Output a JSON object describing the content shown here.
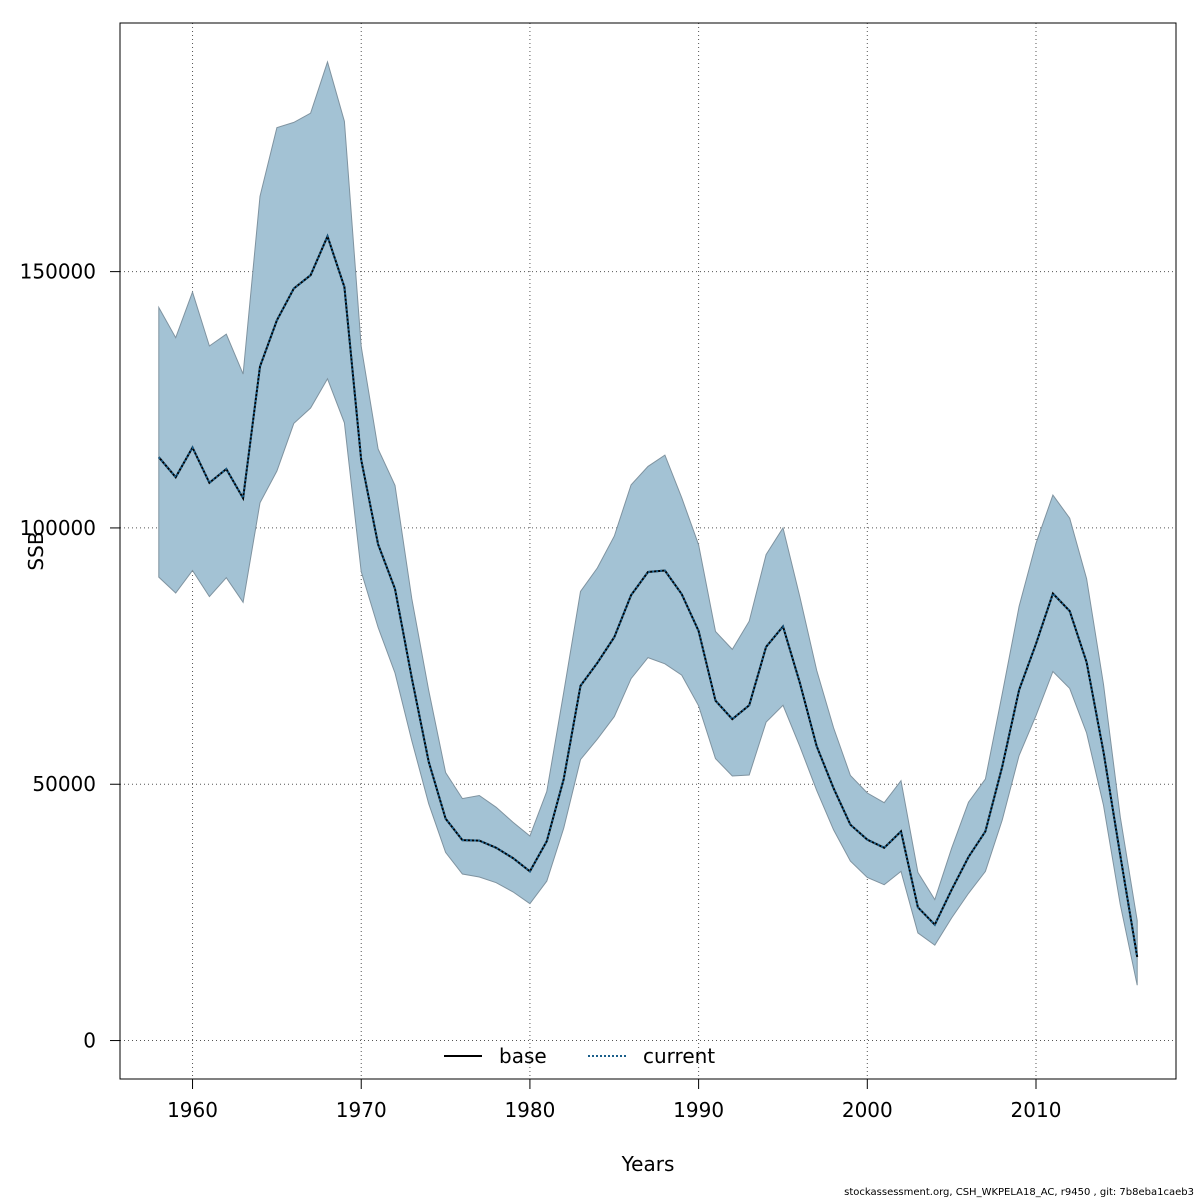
{
  "chart_data": {
    "type": "area",
    "xlabel": "Years",
    "ylabel": "SSB",
    "xlim": [
      1955.7,
      2018.3
    ],
    "ylim": [
      -7500,
      198500
    ],
    "x_ticks": [
      1960,
      1970,
      1980,
      1990,
      2000,
      2010
    ],
    "y_ticks": [
      0,
      50000,
      100000,
      150000
    ],
    "grid": true,
    "legend_position": "bottom-center",
    "colors": {
      "band": "#a3c2d4",
      "band_edge": "#7f93a0",
      "base": "#000000",
      "current": "#1a5e8a"
    },
    "x": [
      1958,
      1959,
      1960,
      1961,
      1962,
      1963,
      1964,
      1965,
      1966,
      1967,
      1968,
      1969,
      1970,
      1971,
      1972,
      1973,
      1974,
      1975,
      1976,
      1977,
      1978,
      1979,
      1980,
      1981,
      1982,
      1983,
      1984,
      1985,
      1986,
      1987,
      1988,
      1989,
      1990,
      1991,
      1992,
      1993,
      1994,
      1995,
      1996,
      1997,
      1998,
      1999,
      2000,
      2001,
      2002,
      2003,
      2004,
      2005,
      2006,
      2007,
      2008,
      2009,
      2010,
      2011,
      2012,
      2013,
      2014,
      2015,
      2016
    ],
    "series": [
      {
        "name": "base",
        "style": "solid",
        "values": [
          113800,
          109900,
          115700,
          108800,
          111500,
          105800,
          131500,
          140500,
          146700,
          149300,
          156900,
          147000,
          113300,
          96800,
          88100,
          70700,
          54400,
          43300,
          39100,
          39000,
          37600,
          35600,
          33000,
          38900,
          51000,
          69200,
          73700,
          78700,
          86900,
          91400,
          91700,
          87100,
          79900,
          66300,
          62700,
          65400,
          76800,
          80800,
          69800,
          57400,
          49200,
          42100,
          39200,
          37600,
          40800,
          26000,
          22600,
          29400,
          35800,
          40800,
          53400,
          68400,
          77400,
          87200,
          83800,
          73800,
          56300,
          36100,
          16300
        ]
      },
      {
        "name": "current",
        "style": "dotted",
        "values": [
          113800,
          109900,
          115700,
          108800,
          111500,
          105800,
          131500,
          140500,
          146700,
          149300,
          156900,
          147000,
          113300,
          96800,
          88100,
          70700,
          54400,
          43300,
          39100,
          39000,
          37600,
          35600,
          33000,
          38900,
          51000,
          69200,
          73700,
          78700,
          86900,
          91400,
          91700,
          87100,
          79900,
          66300,
          62700,
          65400,
          76800,
          80800,
          69800,
          57400,
          49200,
          42100,
          39200,
          37600,
          40800,
          26000,
          22600,
          29400,
          35800,
          40800,
          53400,
          68400,
          77400,
          87200,
          83800,
          73800,
          56300,
          36100,
          16300
        ]
      }
    ],
    "ci_upper": [
      143000,
      137100,
      146000,
      135500,
      137800,
      130000,
      164700,
      178100,
      179100,
      180900,
      190900,
      179300,
      135400,
      115400,
      108300,
      86200,
      68300,
      52300,
      47200,
      47800,
      45500,
      42600,
      39900,
      48600,
      67900,
      87600,
      92200,
      98400,
      108400,
      112000,
      114200,
      105900,
      96700,
      79800,
      76300,
      81800,
      94800,
      100000,
      86600,
      72200,
      61000,
      51700,
      48300,
      46400,
      50700,
      32800,
      27500,
      37500,
      46500,
      51000,
      67600,
      84700,
      97000,
      106400,
      101900,
      90100,
      69500,
      43600,
      23400
    ],
    "ci_lower": [
      90400,
      87300,
      91700,
      86600,
      90300,
      85500,
      104900,
      111100,
      120400,
      123400,
      129100,
      120500,
      91500,
      80600,
      71700,
      58500,
      46200,
      36700,
      32500,
      31900,
      30800,
      29000,
      26700,
      31100,
      41400,
      54800,
      58800,
      63200,
      70600,
      74700,
      73500,
      71300,
      65300,
      55000,
      51600,
      51800,
      62100,
      65400,
      57400,
      48800,
      41100,
      35000,
      31800,
      30400,
      33000,
      21000,
      18600,
      23900,
      28700,
      33000,
      43000,
      55600,
      63400,
      72000,
      68700,
      60000,
      45900,
      26500,
      10800
    ]
  },
  "footer": "stockassessment.org, CSH_WKPELA18_AC, r9450 , git: 7b8eba1caeb3"
}
